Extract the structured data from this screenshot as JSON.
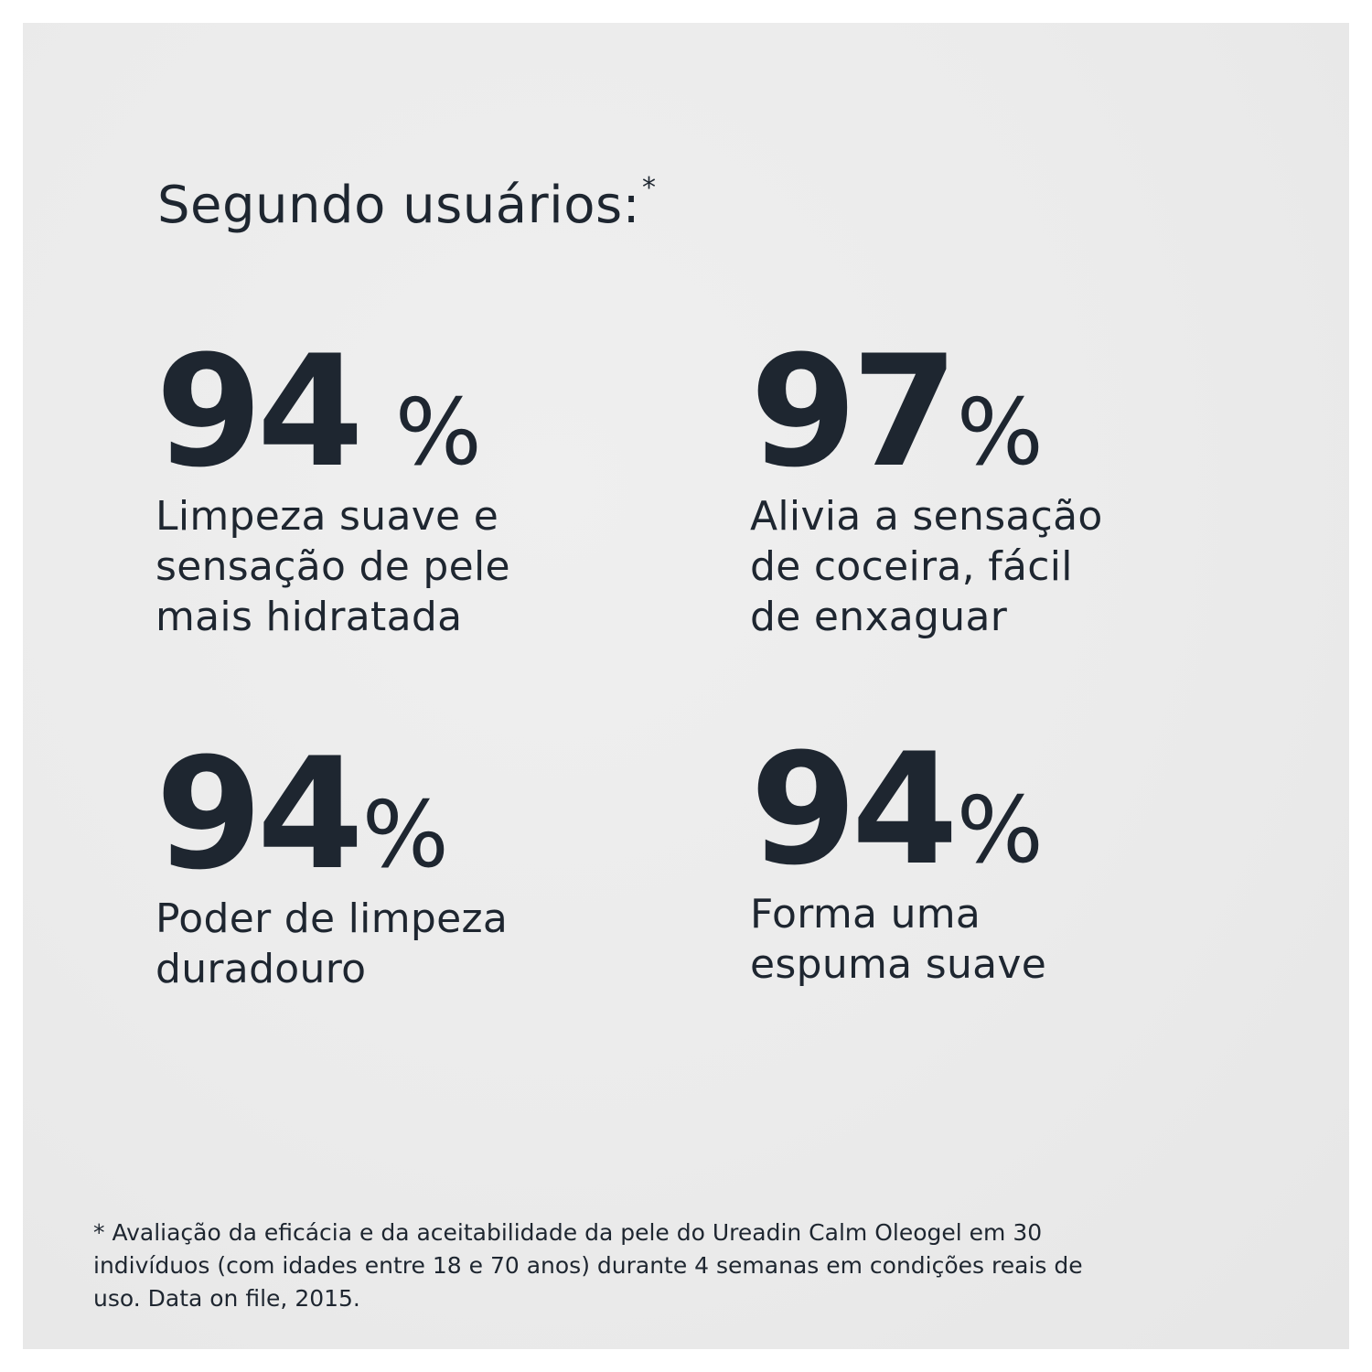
{
  "heading": {
    "text": "Segundo usuários:",
    "marker": "*"
  },
  "stats": [
    {
      "value": "94",
      "unit": "%",
      "lines": [
        "Limpeza suave e",
        "sensação de pele",
        "mais hidratada"
      ]
    },
    {
      "value": "97",
      "unit": "%",
      "lines": [
        "Alivia a sensação",
        "de coceira, fácil",
        "de enxaguar"
      ]
    },
    {
      "value": "94",
      "unit": "%",
      "lines": [
        "Poder de limpeza",
        "duradouro"
      ]
    },
    {
      "value": "94",
      "unit": "%",
      "lines": [
        "Forma uma",
        "espuma suave"
      ]
    }
  ],
  "footnote": {
    "lines": [
      "* Avaliação da eficácia e da aceitabilidade da pele do Ureadin Calm Oleogel em 30",
      "indivíduos (com idades entre 18 e 70 anos) durante 4 semanas em condições reais de",
      "uso. Data on file, 2015."
    ]
  },
  "colors": {
    "text": "#1e2630",
    "background": "#ebebeb"
  }
}
